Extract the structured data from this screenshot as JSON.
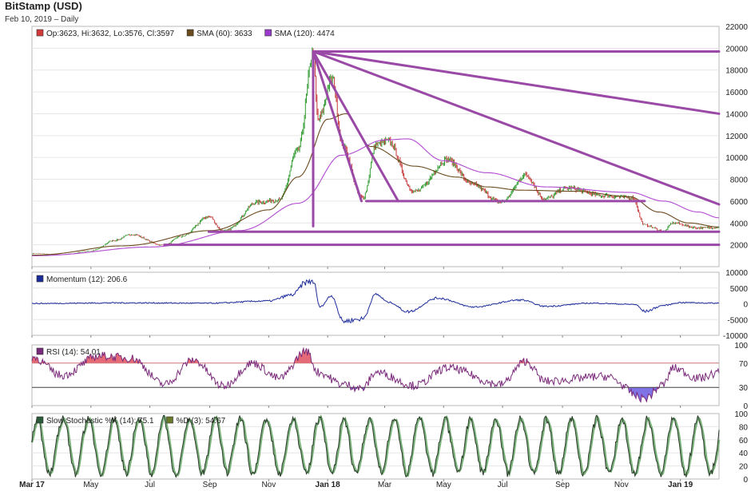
{
  "header": {
    "title": "BitStamp (USD)",
    "subtitle": "Feb 10, 2019 – Daily"
  },
  "colors": {
    "up": "#2e9a2e",
    "down": "#c63a3a",
    "sma60": "#6b4a1e",
    "sma120": "#b04ad0",
    "trend": "#9a4aa6",
    "momentum": "#1c2b9a",
    "rsi": "#7a2a7a",
    "stoch_k": "#2a3a2a",
    "stoch_d": "#7ab07a"
  },
  "chart_data": [
    {
      "type": "candlestick",
      "name": "price",
      "legend": [
        {
          "label": "Op:3623, Hi:3632, Lo:3576, Cl:3597",
          "color": "#d23a3a"
        },
        {
          "label": "SMA (60): 3633",
          "color": "#6b4a1e"
        },
        {
          "label": "SMA (120): 4474",
          "color": "#9a3acb"
        }
      ],
      "ylim": [
        0,
        22000
      ],
      "yticks": [
        "22000",
        "20000",
        "18000",
        "16000",
        "14000",
        "12000",
        "10000",
        "8000",
        "6000",
        "4000",
        "2000"
      ],
      "ytick_values": [
        22000,
        20000,
        18000,
        16000,
        14000,
        12000,
        10000,
        8000,
        6000,
        4000,
        2000
      ],
      "close_anchors": [
        [
          "2017-03-01",
          1200
        ],
        [
          "2017-04-01",
          1100
        ],
        [
          "2017-05-01",
          1450
        ],
        [
          "2017-05-25",
          2400
        ],
        [
          "2017-06-12",
          2950
        ],
        [
          "2017-07-16",
          1950
        ],
        [
          "2017-08-01",
          2750
        ],
        [
          "2017-08-31",
          4600
        ],
        [
          "2017-09-15",
          3250
        ],
        [
          "2017-10-20",
          5900
        ],
        [
          "2017-11-12",
          6100
        ],
        [
          "2017-11-30",
          10500
        ],
        [
          "2017-12-17",
          19600
        ],
        [
          "2017-12-22",
          13500
        ],
        [
          "2018-01-06",
          17200
        ],
        [
          "2018-01-17",
          11000
        ],
        [
          "2018-02-06",
          6300
        ],
        [
          "2018-02-20",
          11200
        ],
        [
          "2018-03-05",
          11500
        ],
        [
          "2018-04-01",
          6900
        ],
        [
          "2018-05-05",
          9800
        ],
        [
          "2018-06-01",
          7500
        ],
        [
          "2018-06-29",
          5900
        ],
        [
          "2018-07-25",
          8400
        ],
        [
          "2018-08-14",
          6200
        ],
        [
          "2018-09-05",
          7200
        ],
        [
          "2018-10-15",
          6500
        ],
        [
          "2018-11-13",
          6300
        ],
        [
          "2018-11-25",
          3800
        ],
        [
          "2018-12-15",
          3250
        ],
        [
          "2018-12-24",
          4000
        ],
        [
          "2019-01-20",
          3550
        ],
        [
          "2019-02-10",
          3597
        ]
      ],
      "sma60_anchors": [
        [
          "2017-03-01",
          1050
        ],
        [
          "2017-06-01",
          1900
        ],
        [
          "2017-09-01",
          3300
        ],
        [
          "2017-11-01",
          5200
        ],
        [
          "2017-12-01",
          8200
        ],
        [
          "2018-01-01",
          13500
        ],
        [
          "2018-01-20",
          14000
        ],
        [
          "2018-02-15",
          11000
        ],
        [
          "2018-04-01",
          9200
        ],
        [
          "2018-05-15",
          8200
        ],
        [
          "2018-06-15",
          7300
        ],
        [
          "2018-07-20",
          7000
        ],
        [
          "2018-09-15",
          6900
        ],
        [
          "2018-11-10",
          6400
        ],
        [
          "2018-12-10",
          5000
        ],
        [
          "2019-01-10",
          4000
        ],
        [
          "2019-02-10",
          3633
        ]
      ],
      "sma120_anchors": [
        [
          "2017-03-01",
          1000
        ],
        [
          "2017-07-01",
          1800
        ],
        [
          "2017-10-01",
          3300
        ],
        [
          "2017-12-01",
          5800
        ],
        [
          "2018-01-15",
          10200
        ],
        [
          "2018-03-01",
          11600
        ],
        [
          "2018-03-25",
          11700
        ],
        [
          "2018-05-01",
          9700
        ],
        [
          "2018-06-15",
          8600
        ],
        [
          "2018-08-15",
          7300
        ],
        [
          "2018-11-10",
          6800
        ],
        [
          "2018-12-15",
          6000
        ],
        [
          "2019-01-20",
          5000
        ],
        [
          "2019-02-10",
          4474
        ]
      ],
      "trendlines": [
        {
          "from": [
            "2017-12-17",
            19700
          ],
          "to": [
            "2019-02-10",
            19700
          ]
        },
        {
          "from": [
            "2017-12-17",
            19700
          ],
          "to": [
            "2019-02-10",
            14000
          ]
        },
        {
          "from": [
            "2017-12-17",
            19700
          ],
          "to": [
            "2019-02-10",
            5700
          ]
        },
        {
          "from": [
            "2017-12-17",
            19700
          ],
          "to": [
            "2018-03-15",
            6000
          ]
        },
        {
          "from": [
            "2017-12-17",
            19700
          ],
          "to": [
            "2018-02-05",
            6000
          ]
        },
        {
          "from": [
            "2017-12-17",
            19700
          ],
          "to": [
            "2017-12-17",
            3700
          ]
        },
        {
          "from": [
            "2018-02-10",
            6000
          ],
          "to": [
            "2018-11-25",
            6000
          ]
        },
        {
          "from": [
            "2017-08-31",
            3200
          ],
          "to": [
            "2019-02-10",
            3200
          ]
        },
        {
          "from": [
            "2017-07-16",
            2000
          ],
          "to": [
            "2019-02-10",
            2000
          ]
        }
      ]
    },
    {
      "type": "line",
      "name": "momentum",
      "legend": [
        {
          "label": "Momentum (12): 206.6",
          "color": "#1c2b9a"
        }
      ],
      "ylim": [
        -10000,
        10000
      ],
      "yticks": [
        "10000",
        "5000",
        "0",
        "-5000",
        "-10000"
      ],
      "ytick_values": [
        10000,
        5000,
        0,
        -5000,
        -10000
      ],
      "anchors": [
        [
          "2017-03-01",
          100
        ],
        [
          "2017-06-01",
          300
        ],
        [
          "2017-09-01",
          200
        ],
        [
          "2017-11-01",
          900
        ],
        [
          "2017-11-25",
          2800
        ],
        [
          "2017-12-10",
          6800
        ],
        [
          "2017-12-17",
          7200
        ],
        [
          "2017-12-24",
          -1000
        ],
        [
          "2018-01-05",
          2500
        ],
        [
          "2018-01-17",
          -5500
        ],
        [
          "2018-02-06",
          -4800
        ],
        [
          "2018-02-20",
          3000
        ],
        [
          "2018-03-05",
          500
        ],
        [
          "2018-03-25",
          -2500
        ],
        [
          "2018-04-25",
          1800
        ],
        [
          "2018-06-01",
          -1000
        ],
        [
          "2018-07-20",
          1200
        ],
        [
          "2018-08-14",
          -800
        ],
        [
          "2018-10-01",
          200
        ],
        [
          "2018-11-15",
          -200
        ],
        [
          "2018-11-25",
          -2400
        ],
        [
          "2018-12-15",
          -500
        ],
        [
          "2019-01-01",
          400
        ],
        [
          "2019-02-10",
          206.6
        ]
      ]
    },
    {
      "type": "line",
      "name": "rsi",
      "legend": [
        {
          "label": "RSI (14): 54.01",
          "color": "#7a2a7a"
        }
      ],
      "ylim": [
        0,
        100
      ],
      "yticks": [
        "100",
        "70",
        "30",
        "0"
      ],
      "ytick_values": [
        100,
        70,
        30,
        0
      ],
      "levels": [
        70,
        30
      ],
      "anchors": [
        [
          "2017-03-01",
          80
        ],
        [
          "2017-04-01",
          50
        ],
        [
          "2017-05-10",
          82
        ],
        [
          "2017-06-12",
          78
        ],
        [
          "2017-07-16",
          35
        ],
        [
          "2017-08-15",
          75
        ],
        [
          "2017-09-15",
          32
        ],
        [
          "2017-10-15",
          70
        ],
        [
          "2017-11-12",
          45
        ],
        [
          "2017-12-10",
          90
        ],
        [
          "2017-12-22",
          55
        ],
        [
          "2018-01-17",
          35
        ],
        [
          "2018-02-06",
          28
        ],
        [
          "2018-02-20",
          55
        ],
        [
          "2018-04-01",
          33
        ],
        [
          "2018-05-05",
          62
        ],
        [
          "2018-06-29",
          35
        ],
        [
          "2018-07-25",
          73
        ],
        [
          "2018-08-14",
          40
        ],
        [
          "2018-10-15",
          48
        ],
        [
          "2018-11-25",
          12
        ],
        [
          "2018-12-15",
          35
        ],
        [
          "2018-12-24",
          62
        ],
        [
          "2019-01-20",
          45
        ],
        [
          "2019-02-10",
          54.01
        ]
      ]
    },
    {
      "type": "line",
      "name": "stochastic",
      "legend": [
        {
          "label": "Slow Stochastic %K (14): 75.1",
          "color": "#2a5a3a"
        },
        {
          "label": "%D (3): 54.67",
          "color": "#6a7a2a"
        }
      ],
      "ylim": [
        0,
        100
      ],
      "yticks": [
        "100",
        "80",
        "60",
        "40",
        "20",
        "0"
      ],
      "ytick_values": [
        100,
        80,
        60,
        40,
        20,
        0
      ],
      "k_last": 75.1,
      "d_last": 54.67
    }
  ],
  "x_axis": {
    "start": "2017-03-01",
    "end": "2019-02-10",
    "labels": [
      {
        "text": "Mar 17",
        "date": "2017-03-01",
        "bold": true
      },
      {
        "text": "May",
        "date": "2017-05-01",
        "bold": false
      },
      {
        "text": "Jul",
        "date": "2017-07-01",
        "bold": false
      },
      {
        "text": "Sep",
        "date": "2017-09-01",
        "bold": false
      },
      {
        "text": "Nov",
        "date": "2017-11-01",
        "bold": false
      },
      {
        "text": "Jan 18",
        "date": "2018-01-01",
        "bold": true
      },
      {
        "text": "Mar",
        "date": "2018-03-01",
        "bold": false
      },
      {
        "text": "May",
        "date": "2018-05-01",
        "bold": false
      },
      {
        "text": "Jul",
        "date": "2018-07-01",
        "bold": false
      },
      {
        "text": "Sep",
        "date": "2018-09-01",
        "bold": false
      },
      {
        "text": "Nov",
        "date": "2018-11-01",
        "bold": false
      },
      {
        "text": "Jan 19",
        "date": "2019-01-01",
        "bold": true
      }
    ]
  }
}
